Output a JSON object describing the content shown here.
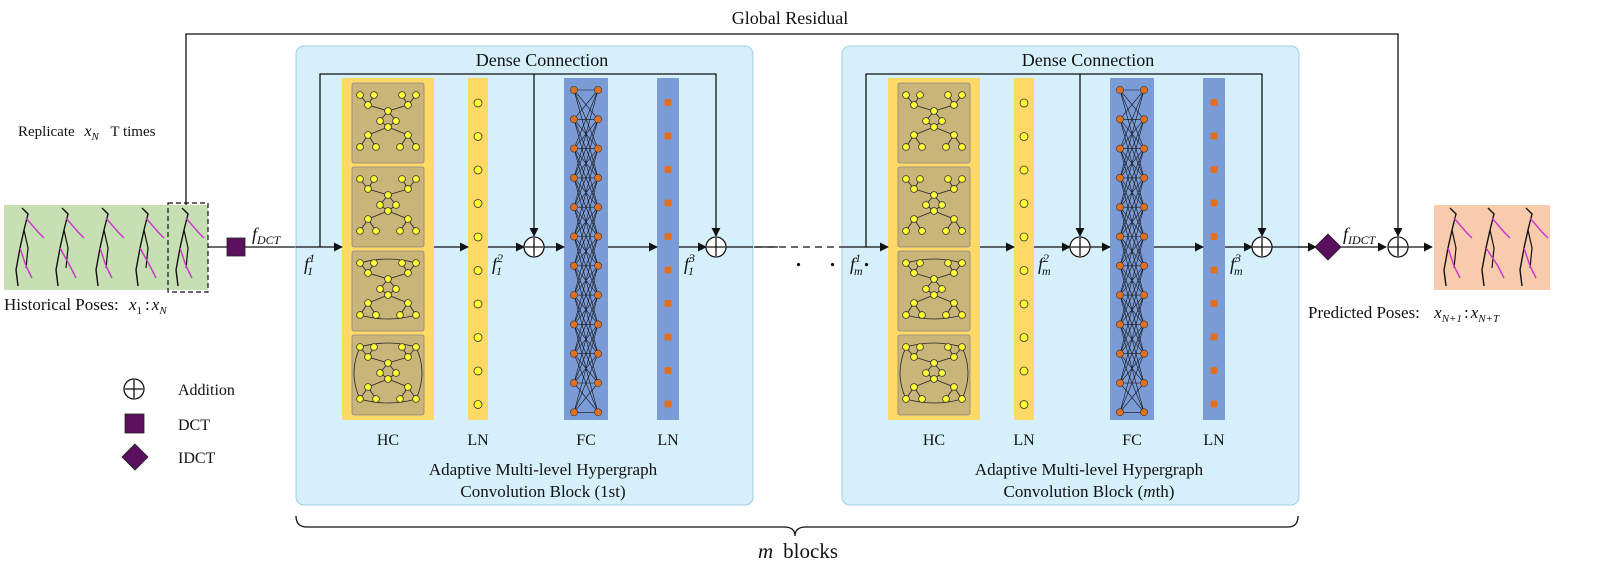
{
  "title": "Global Residual",
  "replicate": {
    "prefix": "Replicate",
    "var": "x",
    "sub": "N",
    "suffix": "T times"
  },
  "inputs": {
    "historical_label": "Historical Poses:",
    "historical_range": {
      "a": "x",
      "a_sub": "1",
      "sep": ":",
      "b": "x",
      "b_sub": "N"
    },
    "predicted_label": "Predicted Poses:",
    "predicted_range": {
      "a": "x",
      "a_sub": "N+1",
      "sep": ":",
      "b": "x",
      "b_sub": "N+T"
    }
  },
  "ops": {
    "dct": {
      "f": "f",
      "sub": "DCT"
    },
    "idct": {
      "f": "f",
      "sub": "IDCT"
    }
  },
  "blocks": [
    {
      "dense": "Dense Connection",
      "caption1": "Adaptive Multi-level Hypergraph",
      "caption2_pre": "Convolution Block (",
      "caption2_it": "",
      "caption2_post": "1st)",
      "labels": [
        "HC",
        "LN",
        "FC",
        "LN"
      ],
      "feat_sub": "1"
    },
    {
      "dense": "Dense Connection",
      "caption1": "Adaptive Multi-level Hypergraph",
      "caption2_pre": "Convolution Block (",
      "caption2_it": "m",
      "caption2_post": "th)",
      "labels": [
        "HC",
        "LN",
        "FC",
        "LN"
      ],
      "feat_sub": "m"
    }
  ],
  "feature_symbol": "f",
  "feature_sups": [
    "1",
    "2",
    "3"
  ],
  "ellipsis": ". . .",
  "brace_label": {
    "var": "m",
    "text": "blocks"
  },
  "legend": [
    {
      "icon": "addition-icon",
      "label": "Addition"
    },
    {
      "icon": "dct-square-icon",
      "label": "DCT"
    },
    {
      "icon": "idct-diamond-icon",
      "label": "IDCT"
    }
  ],
  "colors": {
    "block_bg": "#d6f0fb",
    "hc_bg": "#ffd966",
    "hc_cell": "#c9b57a",
    "ln_yellow": "#ffd966",
    "fc_bg": "#7b9bd6",
    "ln_blue": "#7b9bd6",
    "node_yellow": "#ffff33",
    "node_orange": "#e07020",
    "purple": "#5b0f5f",
    "input_bg": "#c6e0b4",
    "output_bg": "#f8cbad",
    "pink": "#cc33cc"
  }
}
